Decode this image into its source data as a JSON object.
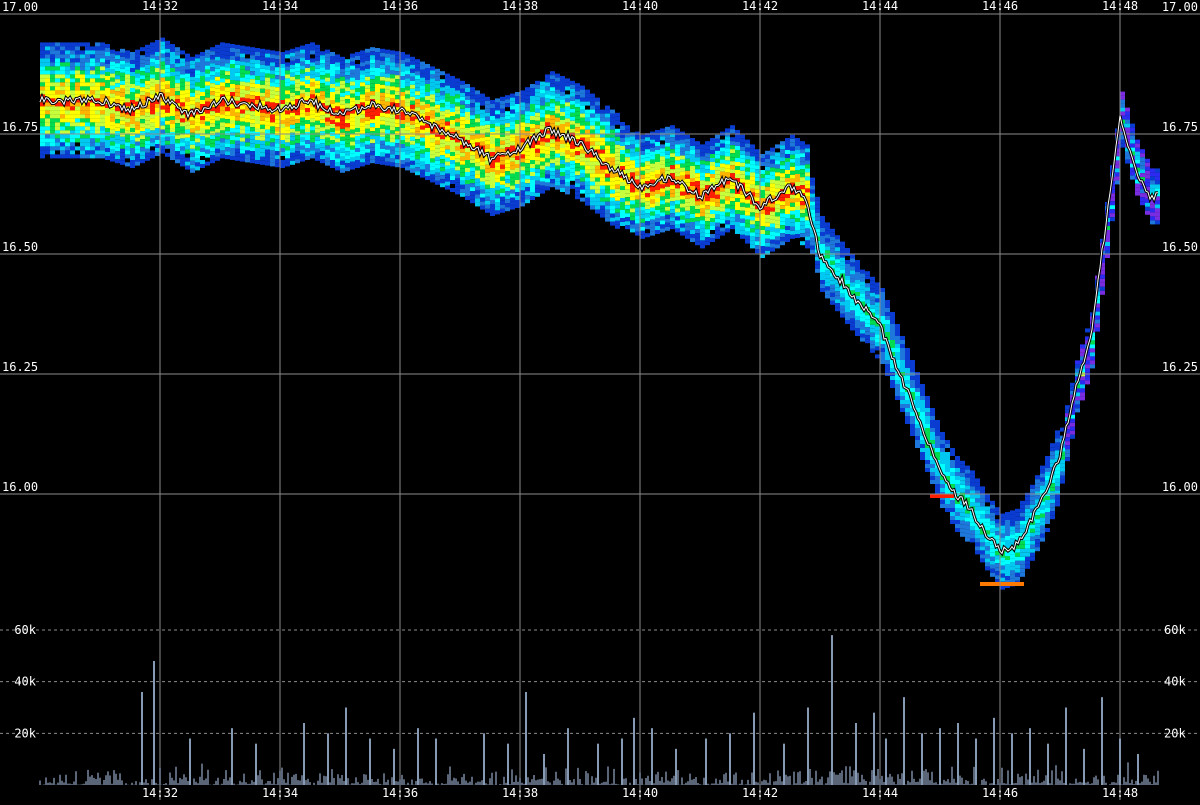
{
  "chart_data": [
    {
      "type": "heatmap",
      "x_axis": {
        "ticks": [
          "14:32",
          "14:34",
          "14:36",
          "14:38",
          "14:40",
          "14:42",
          "14:44",
          "14:46",
          "14:48"
        ]
      },
      "y_axis": {
        "ticks": [
          "17.00",
          "16.75",
          "16.50",
          "16.25",
          "16.00"
        ],
        "range": [
          15.75,
          17.0
        ]
      },
      "grid": true,
      "price_series": {
        "time_minutes": [
          31.0,
          31.5,
          32.0,
          32.5,
          33.0,
          33.5,
          34.0,
          34.5,
          35.0,
          35.5,
          36.0,
          36.5,
          37.0,
          37.5,
          38.0,
          38.5,
          39.0,
          39.5,
          40.0,
          40.5,
          41.0,
          41.5,
          42.0,
          42.5,
          42.75,
          43.0,
          43.5,
          44.0,
          44.5,
          45.0,
          45.25,
          45.5,
          45.75,
          46.0,
          46.25,
          46.5,
          46.75,
          47.0,
          47.25,
          47.5,
          47.75,
          48.0,
          48.25,
          48.5
        ],
        "price": [
          16.82,
          16.8,
          16.83,
          16.79,
          16.82,
          16.81,
          16.8,
          16.82,
          16.79,
          16.81,
          16.8,
          16.77,
          16.74,
          16.7,
          16.72,
          16.76,
          16.73,
          16.68,
          16.64,
          16.66,
          16.62,
          16.66,
          16.6,
          16.64,
          16.62,
          16.5,
          16.42,
          16.35,
          16.2,
          16.05,
          16.0,
          15.97,
          15.92,
          15.88,
          15.89,
          15.94,
          16.0,
          16.08,
          16.22,
          16.32,
          16.55,
          16.78,
          16.68,
          16.62
        ]
      },
      "volume_series": {
        "y_ticks": [
          "60k",
          "40k",
          "20k"
        ],
        "range": [
          0,
          60000
        ],
        "time_minutes": [
          31.7,
          31.9,
          32.5,
          33.2,
          33.6,
          34.4,
          34.8,
          35.1,
          35.5,
          35.9,
          36.3,
          36.6,
          37.4,
          37.8,
          38.1,
          38.4,
          38.8,
          39.3,
          39.7,
          39.9,
          40.2,
          40.6,
          41.1,
          41.5,
          41.9,
          42.4,
          42.8,
          43.2,
          43.6,
          43.9,
          44.1,
          44.4,
          44.7,
          45.0,
          45.3,
          45.6,
          45.9,
          46.2,
          46.5,
          46.8,
          47.1,
          47.4,
          47.7,
          48.0,
          48.3
        ],
        "volume": [
          36000,
          48000,
          18000,
          22000,
          16000,
          24000,
          20000,
          30000,
          18000,
          14000,
          22000,
          18000,
          20000,
          16000,
          36000,
          12000,
          22000,
          16000,
          18000,
          26000,
          22000,
          14000,
          18000,
          20000,
          28000,
          16000,
          30000,
          58000,
          24000,
          28000,
          18000,
          34000,
          20000,
          22000,
          24000,
          18000,
          26000,
          20000,
          22000,
          16000,
          30000,
          14000,
          34000,
          18000,
          12000
        ]
      },
      "colors": {
        "background": "#000000",
        "grid": "#8c8c8c",
        "price_line": "#ffffff",
        "volume_bar": "#b4cdf0",
        "heat_scale": [
          "#0a3cd2",
          "#1e78dc",
          "#00c8f0",
          "#00ffff",
          "#00dc50",
          "#c8ff3c",
          "#ffff00",
          "#ffb400",
          "#ff1e00"
        ]
      }
    }
  ]
}
